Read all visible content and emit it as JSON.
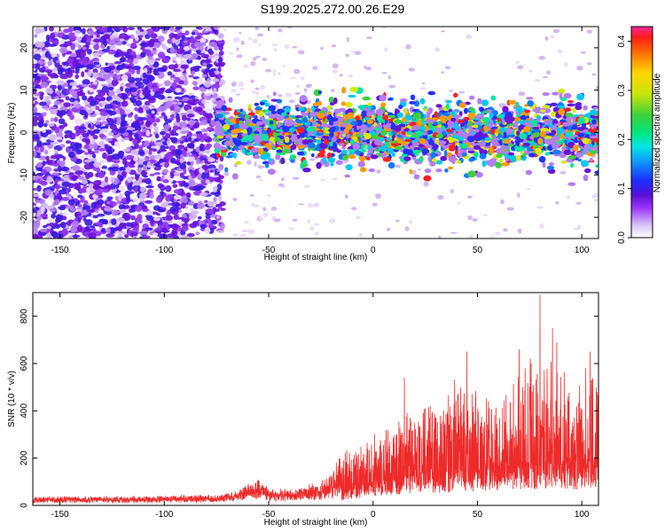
{
  "figure": {
    "title": "S199.2025.272.00.26.E29"
  },
  "chart_data": [
    {
      "type": "heatmap",
      "xlabel": "Height of straight line (km)",
      "ylabel": "Frequency (Hz)",
      "xlim": [
        -163,
        108
      ],
      "ylim": [
        -25,
        25
      ],
      "xticks": [
        "-150",
        "-100",
        "-50",
        "0",
        "50",
        "100"
      ],
      "yticks": [
        "-20",
        "-10",
        "0",
        "10",
        "20"
      ],
      "colorbar": {
        "label": "Normalized spectral amplitude",
        "range": [
          0.0,
          0.43
        ],
        "ticks": [
          "0.0",
          "0.1",
          "0.2",
          "0.3",
          "0.4"
        ]
      },
      "regions": [
        {
          "x_range": [
            -163,
            -75
          ],
          "freq_range": [
            -25,
            25
          ],
          "level": "broadband noise, amplitude ~0.02-0.06"
        },
        {
          "x_range": [
            -75,
            108
          ],
          "freq_range": [
            -8,
            8
          ],
          "level": "coherent band centered at 0 Hz, peaks up to ~0.4"
        }
      ]
    },
    {
      "type": "line",
      "xlabel": "Height of straight line (km)",
      "ylabel": "SNR (10 * v/v)",
      "xlim": [
        -163,
        108
      ],
      "ylim": [
        0,
        900
      ],
      "xticks": [
        "-150",
        "-100",
        "-50",
        "0",
        "50",
        "100"
      ],
      "yticks": [
        "0",
        "200",
        "400",
        "600",
        "800"
      ],
      "color": "#ee2a2a",
      "envelope": {
        "x": [
          -163,
          -120,
          -75,
          -65,
          -60,
          -55,
          -50,
          -40,
          -25,
          -20,
          -15,
          -12,
          -10,
          0,
          10,
          20,
          30,
          40,
          50,
          60,
          70,
          80,
          85,
          90,
          100,
          108
        ],
        "y": [
          35,
          38,
          42,
          60,
          90,
          110,
          70,
          65,
          100,
          130,
          230,
          280,
          230,
          300,
          380,
          420,
          450,
          520,
          480,
          480,
          560,
          600,
          580,
          520,
          550,
          640
        ]
      },
      "baseline": {
        "x": [
          -163,
          -120,
          -75,
          -65,
          -60,
          -55,
          -50,
          -40,
          -25,
          -15,
          -10,
          0,
          20,
          50,
          80,
          108
        ],
        "y": [
          20,
          22,
          25,
          35,
          50,
          60,
          40,
          35,
          50,
          70,
          90,
          120,
          160,
          200,
          230,
          220
        ]
      },
      "notable_peaks": [
        {
          "x": 15,
          "y": 540
        },
        {
          "x": 45,
          "y": 650
        },
        {
          "x": 70,
          "y": 660
        },
        {
          "x": 80,
          "y": 890
        },
        {
          "x": 86,
          "y": 750
        },
        {
          "x": 88,
          "y": 690
        },
        {
          "x": 104,
          "y": 650
        }
      ]
    }
  ]
}
